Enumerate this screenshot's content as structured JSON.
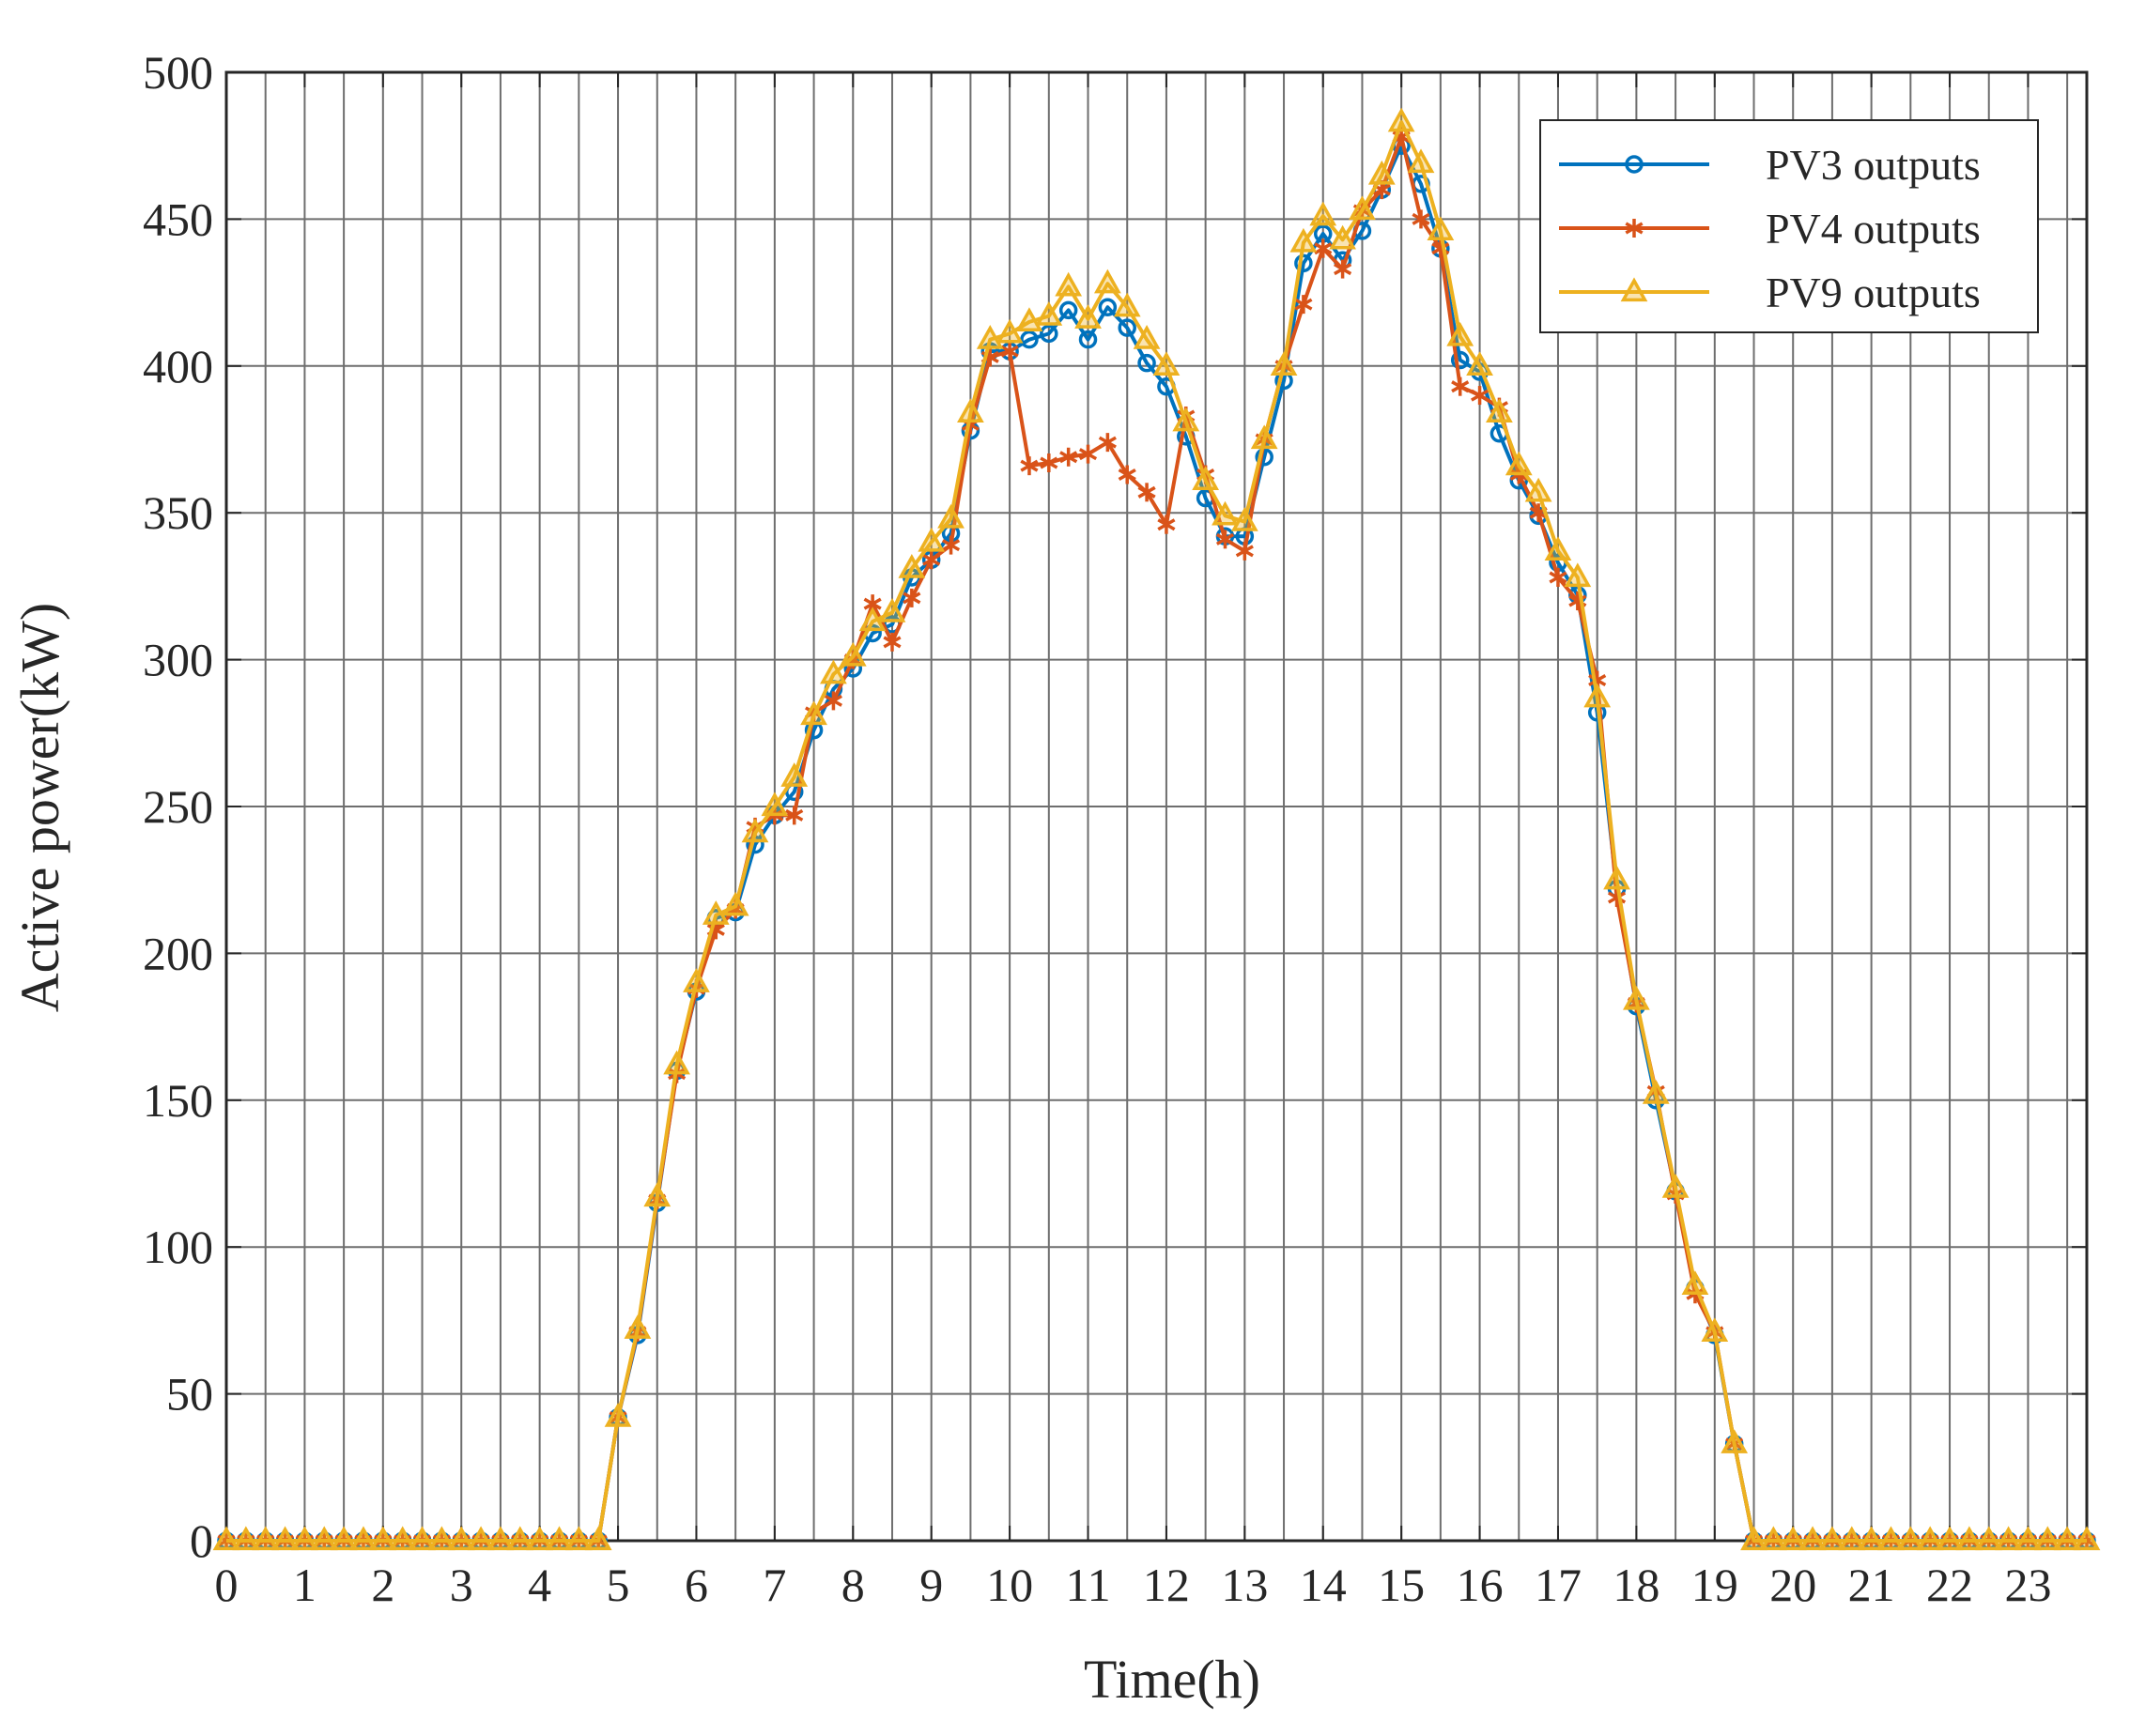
{
  "chart_data": {
    "type": "line",
    "title": "",
    "xlabel": "Time(h)",
    "ylabel": "Active power(kW)",
    "xlim": [
      0,
      23.75
    ],
    "ylim": [
      0,
      500
    ],
    "xticks": [
      0,
      1,
      2,
      3,
      4,
      5,
      6,
      7,
      8,
      9,
      10,
      11,
      12,
      13,
      14,
      15,
      16,
      17,
      18,
      19,
      20,
      21,
      22,
      23
    ],
    "yticks": [
      0,
      50,
      100,
      150,
      200,
      250,
      300,
      350,
      400,
      450,
      500
    ],
    "x_step": 0.25,
    "grid": true,
    "legend_position": "top-right",
    "series": [
      {
        "name": "PV3 outputs",
        "color": "#0072BD",
        "marker": "circle",
        "values": [
          0,
          0,
          0,
          0,
          0,
          0,
          0,
          0,
          0,
          0,
          0,
          0,
          0,
          0,
          0,
          0,
          0,
          0,
          0,
          0,
          42,
          70,
          115,
          160,
          187,
          212,
          214,
          237,
          247,
          255,
          276,
          290,
          297,
          309,
          312,
          328,
          334,
          343,
          378,
          405,
          405,
          409,
          411,
          419,
          409,
          420,
          413,
          401,
          393,
          376,
          355,
          342,
          342,
          369,
          395,
          435,
          445,
          436,
          446,
          460,
          475,
          462,
          440,
          402,
          398,
          377,
          361,
          349,
          333,
          322,
          282,
          222,
          182,
          150,
          119,
          86,
          70,
          33,
          0,
          0,
          0,
          0,
          0,
          0,
          0,
          0,
          0,
          0,
          0,
          0,
          0,
          0,
          0,
          0,
          0,
          0
        ]
      },
      {
        "name": "PV4 outputs",
        "color": "#D95319",
        "marker": "asterisk",
        "values": [
          0,
          0,
          0,
          0,
          0,
          0,
          0,
          0,
          0,
          0,
          0,
          0,
          0,
          0,
          0,
          0,
          0,
          0,
          0,
          0,
          42,
          71,
          116,
          159,
          188,
          208,
          215,
          243,
          247,
          247,
          282,
          286,
          300,
          319,
          306,
          321,
          334,
          339,
          380,
          403,
          405,
          366,
          367,
          369,
          370,
          374,
          363,
          357,
          346,
          383,
          363,
          341,
          337,
          375,
          400,
          421,
          440,
          433,
          453,
          460,
          478,
          450,
          440,
          393,
          390,
          386,
          363,
          350,
          328,
          320,
          293,
          219,
          183,
          153,
          118,
          84,
          71,
          33,
          0,
          0,
          0,
          0,
          0,
          0,
          0,
          0,
          0,
          0,
          0,
          0,
          0,
          0,
          0,
          0,
          0,
          0
        ]
      },
      {
        "name": "PV9 outputs",
        "color": "#EDB120",
        "marker": "triangle",
        "values": [
          0,
          0,
          0,
          0,
          0,
          0,
          0,
          0,
          0,
          0,
          0,
          0,
          0,
          0,
          0,
          0,
          0,
          0,
          0,
          0,
          42,
          72,
          117,
          162,
          190,
          213,
          216,
          241,
          250,
          260,
          281,
          295,
          301,
          313,
          316,
          331,
          340,
          348,
          384,
          409,
          411,
          415,
          417,
          427,
          416,
          428,
          420,
          409,
          400,
          381,
          361,
          349,
          347,
          375,
          400,
          442,
          451,
          443,
          453,
          465,
          483,
          469,
          446,
          410,
          400,
          384,
          366,
          357,
          337,
          328,
          287,
          225,
          184,
          152,
          120,
          87,
          71,
          33,
          0,
          0,
          0,
          0,
          0,
          0,
          0,
          0,
          0,
          0,
          0,
          0,
          0,
          0,
          0,
          0,
          0,
          0
        ]
      }
    ]
  }
}
